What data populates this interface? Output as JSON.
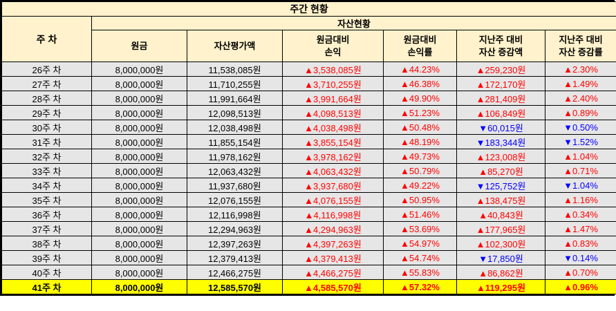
{
  "title": "주간 현황",
  "table": {
    "week_header": "주 차",
    "group_header": "자산현황",
    "columns": [
      "원금",
      "자산평가액",
      "원금대비\n손익",
      "원금대비\n손익률",
      "지난주 대비\n자산 증감액",
      "지난주 대비\n자산 증감률"
    ],
    "rows": [
      {
        "week": "26주 차",
        "principal": "8,000,000원",
        "valuation": "11,538,085원",
        "pl": "▲3,538,085원",
        "pl_rate": "▲44.23%",
        "wow_amount": "▲259,230원",
        "wow_rate": "▲2.30%",
        "highlight": false
      },
      {
        "week": "27주 차",
        "principal": "8,000,000원",
        "valuation": "11,710,255원",
        "pl": "▲3,710,255원",
        "pl_rate": "▲46.38%",
        "wow_amount": "▲172,170원",
        "wow_rate": "▲1.49%",
        "highlight": false
      },
      {
        "week": "28주 차",
        "principal": "8,000,000원",
        "valuation": "11,991,664원",
        "pl": "▲3,991,664원",
        "pl_rate": "▲49.90%",
        "wow_amount": "▲281,409원",
        "wow_rate": "▲2.40%",
        "highlight": false
      },
      {
        "week": "29주 차",
        "principal": "8,000,000원",
        "valuation": "12,098,513원",
        "pl": "▲4,098,513원",
        "pl_rate": "▲51.23%",
        "wow_amount": "▲106,849원",
        "wow_rate": "▲0.89%",
        "highlight": false
      },
      {
        "week": "30주 차",
        "principal": "8,000,000원",
        "valuation": "12,038,498원",
        "pl": "▲4,038,498원",
        "pl_rate": "▲50.48%",
        "wow_amount": "▼60,015원",
        "wow_rate": "▼0.50%",
        "highlight": false
      },
      {
        "week": "31주 차",
        "principal": "8,000,000원",
        "valuation": "11,855,154원",
        "pl": "▲3,855,154원",
        "pl_rate": "▲48.19%",
        "wow_amount": "▼183,344원",
        "wow_rate": "▼1.52%",
        "highlight": false
      },
      {
        "week": "32주 차",
        "principal": "8,000,000원",
        "valuation": "11,978,162원",
        "pl": "▲3,978,162원",
        "pl_rate": "▲49.73%",
        "wow_amount": "▲123,008원",
        "wow_rate": "▲1.04%",
        "highlight": false
      },
      {
        "week": "33주 차",
        "principal": "8,000,000원",
        "valuation": "12,063,432원",
        "pl": "▲4,063,432원",
        "pl_rate": "▲50.79%",
        "wow_amount": "▲85,270원",
        "wow_rate": "▲0.71%",
        "highlight": false
      },
      {
        "week": "34주 차",
        "principal": "8,000,000원",
        "valuation": "11,937,680원",
        "pl": "▲3,937,680원",
        "pl_rate": "▲49.22%",
        "wow_amount": "▼125,752원",
        "wow_rate": "▼1.04%",
        "highlight": false
      },
      {
        "week": "35주 차",
        "principal": "8,000,000원",
        "valuation": "12,076,155원",
        "pl": "▲4,076,155원",
        "pl_rate": "▲50.95%",
        "wow_amount": "▲138,475원",
        "wow_rate": "▲1.16%",
        "highlight": false
      },
      {
        "week": "36주 차",
        "principal": "8,000,000원",
        "valuation": "12,116,998원",
        "pl": "▲4,116,998원",
        "pl_rate": "▲51.46%",
        "wow_amount": "▲40,843원",
        "wow_rate": "▲0.34%",
        "highlight": false
      },
      {
        "week": "37주 차",
        "principal": "8,000,000원",
        "valuation": "12,294,963원",
        "pl": "▲4,294,963원",
        "pl_rate": "▲53.69%",
        "wow_amount": "▲177,965원",
        "wow_rate": "▲1.47%",
        "highlight": false
      },
      {
        "week": "38주 차",
        "principal": "8,000,000원",
        "valuation": "12,397,263원",
        "pl": "▲4,397,263원",
        "pl_rate": "▲54.97%",
        "wow_amount": "▲102,300원",
        "wow_rate": "▲0.83%",
        "highlight": false
      },
      {
        "week": "39주 차",
        "principal": "8,000,000원",
        "valuation": "12,379,413원",
        "pl": "▲4,379,413원",
        "pl_rate": "▲54.74%",
        "wow_amount": "▼17,850원",
        "wow_rate": "▼0.14%",
        "highlight": false
      },
      {
        "week": "40주 차",
        "principal": "8,000,000원",
        "valuation": "12,466,275원",
        "pl": "▲4,466,275원",
        "pl_rate": "▲55.83%",
        "wow_amount": "▲86,862원",
        "wow_rate": "▲0.70%",
        "highlight": false
      },
      {
        "week": "41주 차",
        "principal": "8,000,000원",
        "valuation": "12,585,570원",
        "pl": "▲4,585,570원",
        "pl_rate": "▲57.32%",
        "wow_amount": "▲119,295원",
        "wow_rate": "▲0.96%",
        "highlight": true
      }
    ]
  },
  "symbols": {
    "up_triangle": "▲",
    "down_triangle": "▼"
  },
  "colors": {
    "up": "#FF0000",
    "down": "#0000FF",
    "header_bg": "#FFF2CC",
    "row_bg": "#E7E6E6",
    "highlight_bg": "#FFFF00",
    "border": "#000000"
  }
}
